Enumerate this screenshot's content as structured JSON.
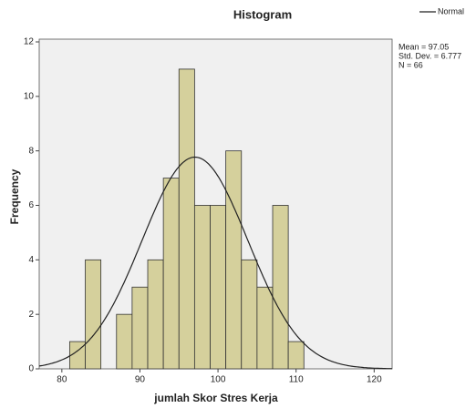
{
  "chart_data": {
    "type": "histogram",
    "title": "Histogram",
    "x_label": "jumlah Skor Stres Kerja",
    "y_label": "Frequency",
    "bins": [
      81,
      83,
      85,
      87,
      89,
      91,
      93,
      95,
      97,
      99,
      101,
      103,
      105,
      107,
      109,
      111
    ],
    "values": [
      1,
      4,
      0,
      2,
      3,
      4,
      7,
      11,
      6,
      6,
      8,
      4,
      3,
      6,
      1
    ],
    "color": "#d5d09c",
    "xlim": [
      77.1,
      122.3
    ],
    "xticks": [
      80,
      90,
      100,
      110,
      120
    ],
    "ylim": [
      0,
      12.1
    ],
    "yticks": [
      0,
      2,
      4,
      6,
      8,
      10,
      12
    ],
    "series": [
      {
        "name": "Normal",
        "color": "#222222"
      }
    ],
    "annotations": [
      {
        "value": 97.05,
        "label": "Mean = 97.05"
      },
      {
        "value": 6.777,
        "label": "Std. Dev. = 6.777"
      },
      {
        "value": 66,
        "label": "N = 66"
      }
    ],
    "legend": "top-right"
  }
}
